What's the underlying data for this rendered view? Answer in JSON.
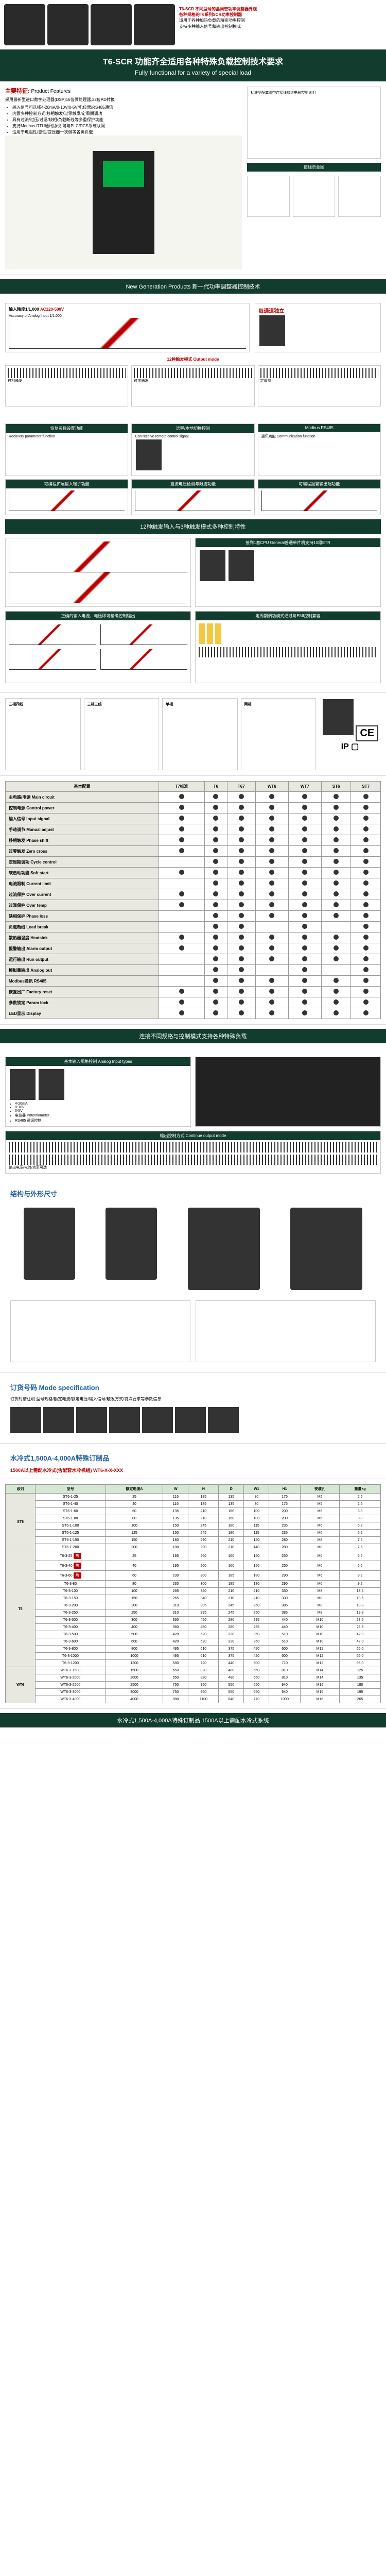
{
  "header": {
    "notes": [
      "T6-SCR 不同型号的晶闸管功率调整器外观",
      "各种规格的T6系列SCR功率控制器",
      "适用于各种加热负载的精密功率控制",
      "支持多种输入信号和输出控制模式"
    ]
  },
  "title": {
    "model": "T6-SCR",
    "cn": "功能齐全适用各种特殊负载控制技术要求",
    "en": "Fully functional for a variety of special load"
  },
  "features": {
    "label": "主要特征:",
    "label_en": "Product Features",
    "intro": "采用最新型进口数字处理器(DSP)16位微处理器,32位AD转换",
    "list": [
      "输入信号可选择4-20mA/0-10V/0-5V/电位器/RS485通讯",
      "内置多种控制方式:移相触发/过零触发/定周期调功",
      "具有过流/过压/过温/缺相/负载断线等多重保护功能",
      "支持Modbus RTU通讯协议,可与PLC/DCS系统联网",
      "适用于电阻性/感性/变压器一次侧等各类负载"
    ]
  },
  "bands": {
    "b1": "标准型配套附带连接线和继电器控制说明",
    "b2": "New Generation Products 新一代功率调整器控制技术",
    "b3": "连接不同规格与控制模式支持各种特殊负载"
  },
  "input_accuracy": {
    "title": "输入精度1/1,000",
    "sub": "Accuracy of Analog Input 1/1,000",
    "note": "AC120-500V",
    "red": "每通道独立"
  },
  "output_modes": {
    "title": "12种触发模式 Output mode",
    "modes": [
      "移相触发",
      "过零触发",
      "定周期",
      "软启动",
      "限流模式",
      "手动模式"
    ]
  },
  "func_boxes": {
    "f1": {
      "hdr": "恢复参数设置功能",
      "en": "Recovery parameter function"
    },
    "f2": {
      "hdr": "远程/本地切换控制",
      "en": "Can receive remote control signal"
    },
    "f3": {
      "hdr": "Modbus RS485",
      "en": "通讯功能 Communication function"
    },
    "f4": {
      "hdr": "可编程扩展输入端子功能",
      "en": "Multi-function input terminal"
    },
    "f5": {
      "hdr": "直流电压检测与限流功能",
      "en": "DC voltage detection"
    },
    "f6": {
      "hdr": "可编程报警输出端功能",
      "en": "Programmable alarm output"
    },
    "f7": {
      "hdr": "12种触发输入与3种触发模式多种控制特性",
      "en": "Multiple control characteristics"
    },
    "f8": {
      "hdr": "接到1套CPU General普通单片机支持10组ETR",
      "en": "CPU control support"
    },
    "f9": {
      "hdr": "正确的输入电流、电压即可精确控制输出",
      "en": "Precise output control"
    },
    "f10": {
      "hdr": "定周期调功模式通过与EMI控制兼容",
      "en": "EMI compatible control"
    }
  },
  "spec_table": {
    "headers": [
      "基本配置",
      "T7标准",
      "T6",
      "T67",
      "WT6",
      "WT7",
      "ST6",
      "ST7"
    ],
    "rows": [
      {
        "lbl": "主电路/电源 Main circuit",
        "vals": [
          "●",
          "●",
          "●",
          "●",
          "●",
          "●",
          "●"
        ]
      },
      {
        "lbl": "控制电源 Control power",
        "vals": [
          "●",
          "●",
          "●",
          "●",
          "●",
          "●",
          "●"
        ]
      },
      {
        "lbl": "输入信号 Input signal",
        "vals": [
          "●",
          "●",
          "●",
          "●",
          "●",
          "●",
          "●"
        ]
      },
      {
        "lbl": "手动调节 Manual adjust",
        "vals": [
          "●",
          "●",
          "●",
          "●",
          "●",
          "●",
          "●"
        ]
      },
      {
        "lbl": "移相触发 Phase shift",
        "vals": [
          "●",
          "●",
          "●",
          "●",
          "●",
          "●",
          "●"
        ]
      },
      {
        "lbl": "过零触发 Zero cross",
        "vals": [
          "●",
          "●",
          "●",
          "●",
          "●",
          "●",
          "●"
        ]
      },
      {
        "lbl": "定周期调功 Cycle control",
        "vals": [
          "",
          "●",
          "●",
          "●",
          "●",
          "●",
          "●"
        ]
      },
      {
        "lbl": "软启动功能 Soft start",
        "vals": [
          "●",
          "●",
          "●",
          "●",
          "●",
          "●",
          "●"
        ]
      },
      {
        "lbl": "电流限制 Current limit",
        "vals": [
          "",
          "●",
          "●",
          "●",
          "●",
          "●",
          "●"
        ]
      },
      {
        "lbl": "过流保护 Over current",
        "vals": [
          "●",
          "●",
          "●",
          "●",
          "●",
          "●",
          "●"
        ]
      },
      {
        "lbl": "过温保护 Over temp",
        "vals": [
          "●",
          "●",
          "●",
          "●",
          "●",
          "●",
          "●"
        ]
      },
      {
        "lbl": "缺相保护 Phase loss",
        "vals": [
          "",
          "●",
          "●",
          "●",
          "●",
          "●",
          "●"
        ]
      },
      {
        "lbl": "负载断线 Load break",
        "vals": [
          "",
          "●",
          "●",
          "",
          "●",
          "",
          "●"
        ]
      },
      {
        "lbl": "散热器温度 Heatsink",
        "vals": [
          "●",
          "●",
          "●",
          "●",
          "●",
          "●",
          "●"
        ]
      },
      {
        "lbl": "报警输出 Alarm output",
        "vals": [
          "●",
          "●",
          "●",
          "●",
          "●",
          "●",
          "●"
        ]
      },
      {
        "lbl": "运行输出 Run output",
        "vals": [
          "",
          "●",
          "●",
          "●",
          "●",
          "●",
          "●"
        ]
      },
      {
        "lbl": "模拟量输出 Analog out",
        "vals": [
          "",
          "●",
          "●",
          "",
          "●",
          "",
          "●"
        ]
      },
      {
        "lbl": "Modbus通讯 RS485",
        "vals": [
          "",
          "●",
          "●",
          "●",
          "●",
          "●",
          "●"
        ]
      },
      {
        "lbl": "恢复出厂 Factory reset",
        "vals": [
          "●",
          "●",
          "●",
          "●",
          "●",
          "●",
          "●"
        ]
      },
      {
        "lbl": "参数锁定 Param lock",
        "vals": [
          "●",
          "●",
          "●",
          "●",
          "●",
          "●",
          "●"
        ]
      },
      {
        "lbl": "LED显示 Display",
        "vals": [
          "●",
          "●",
          "●",
          "●",
          "●",
          "●",
          "●"
        ]
      }
    ]
  },
  "input_types": {
    "title": "基本输入规格控制 Analog Input types",
    "items": [
      "4-20mA",
      "0-10V",
      "0-5V",
      "电位器 Potentiometer",
      "RS485 通讯控制"
    ]
  },
  "output_types": {
    "title": "输出控制方式 Continue output mode",
    "note": "输出电压/电流/功率可选"
  },
  "dims": {
    "title": "结构与外形尺寸",
    "sub": "Structure and dimensions"
  },
  "mode_spec": {
    "title": "订货号码 Mode specification",
    "note": "订货时请注明:型号规格/额定电流/额定电压/输入信号/触发方式/特殊要求等参数信息"
  },
  "water": {
    "title": "水冷式1,500A-4,000A特殊订制品",
    "sub": "1500A以上需配水冷式(含配套水冷机组) WT6-X-X-XXX"
  },
  "dim_table": {
    "groups": [
      "ST6",
      "T6",
      "WT6"
    ],
    "headers": [
      "型号",
      "额定电流A",
      "W",
      "H",
      "D",
      "W1",
      "H1",
      "安装孔",
      "重量kg"
    ],
    "st6_rows": [
      [
        "ST6-1-25",
        "25",
        "116",
        "185",
        "135",
        "80",
        "175",
        "M5",
        "2.5"
      ],
      [
        "ST6-1-40",
        "40",
        "116",
        "185",
        "135",
        "80",
        "175",
        "M5",
        "2.5"
      ],
      [
        "ST6-1-60",
        "60",
        "135",
        "210",
        "160",
        "100",
        "200",
        "M6",
        "3.8"
      ],
      [
        "ST6-1-80",
        "80",
        "135",
        "210",
        "160",
        "100",
        "200",
        "M6",
        "3.8"
      ],
      [
        "ST6-1-100",
        "100",
        "150",
        "245",
        "180",
        "115",
        "235",
        "M6",
        "5.2"
      ],
      [
        "ST6-1-125",
        "125",
        "150",
        "245",
        "180",
        "115",
        "235",
        "M6",
        "5.2"
      ],
      [
        "ST6-1-150",
        "150",
        "180",
        "290",
        "210",
        "140",
        "280",
        "M8",
        "7.5"
      ],
      [
        "ST6-1-200",
        "200",
        "180",
        "290",
        "210",
        "140",
        "280",
        "M8",
        "7.5"
      ]
    ],
    "t6_rows": [
      [
        "T6-3-25",
        "25",
        "195",
        "260",
        "160",
        "150",
        "250",
        "M6",
        "6.5"
      ],
      [
        "T6-3-40",
        "40",
        "195",
        "260",
        "160",
        "150",
        "250",
        "M6",
        "6.5"
      ],
      [
        "T6-3-60",
        "60",
        "230",
        "300",
        "185",
        "180",
        "290",
        "M6",
        "9.2"
      ],
      [
        "T6-3-80",
        "80",
        "230",
        "300",
        "185",
        "180",
        "290",
        "M6",
        "9.2"
      ],
      [
        "T6-3-100",
        "100",
        "265",
        "340",
        "210",
        "210",
        "330",
        "M8",
        "13.5"
      ],
      [
        "T6-3-150",
        "150",
        "265",
        "340",
        "210",
        "210",
        "330",
        "M8",
        "13.5"
      ],
      [
        "T6-3-200",
        "200",
        "310",
        "395",
        "245",
        "250",
        "385",
        "M8",
        "19.8"
      ],
      [
        "T6-3-250",
        "250",
        "310",
        "395",
        "245",
        "250",
        "385",
        "M8",
        "19.8"
      ],
      [
        "T6-3-300",
        "300",
        "360",
        "450",
        "280",
        "295",
        "440",
        "M10",
        "28.5"
      ],
      [
        "T6-3-400",
        "400",
        "360",
        "450",
        "280",
        "295",
        "440",
        "M10",
        "28.5"
      ],
      [
        "T6-3-500",
        "500",
        "420",
        "520",
        "320",
        "350",
        "510",
        "M10",
        "42.0"
      ],
      [
        "T6-3-600",
        "600",
        "420",
        "520",
        "320",
        "350",
        "510",
        "M10",
        "42.0"
      ],
      [
        "T6-3-800",
        "800",
        "495",
        "610",
        "375",
        "420",
        "600",
        "M12",
        "65.0"
      ],
      [
        "T6-3-1000",
        "1000",
        "495",
        "610",
        "375",
        "420",
        "600",
        "M12",
        "65.0"
      ],
      [
        "T6-3-1200",
        "1200",
        "580",
        "720",
        "440",
        "500",
        "710",
        "M12",
        "95.0"
      ]
    ],
    "wt6_rows": [
      [
        "WT6-3-1500",
        "1500",
        "650",
        "820",
        "480",
        "560",
        "810",
        "M14",
        "125"
      ],
      [
        "WT6-3-2000",
        "2000",
        "650",
        "820",
        "480",
        "560",
        "810",
        "M14",
        "135"
      ],
      [
        "WT6-3-2500",
        "2500",
        "750",
        "950",
        "550",
        "650",
        "940",
        "M16",
        "180"
      ],
      [
        "WT6-3-3000",
        "3000",
        "750",
        "950",
        "550",
        "650",
        "940",
        "M16",
        "195"
      ],
      [
        "WT6-3-4000",
        "4000",
        "880",
        "1100",
        "640",
        "770",
        "1090",
        "M16",
        "265"
      ]
    ]
  },
  "footer": "水冷式1,500A-4,000A特殊订制品 1500A以上需配水冷式系统",
  "colors": {
    "brand_green": "#113c2e",
    "accent_red": "#b00020",
    "table_hdr": "#e8e8e0",
    "dim_hdr": "#d4e8d4"
  }
}
